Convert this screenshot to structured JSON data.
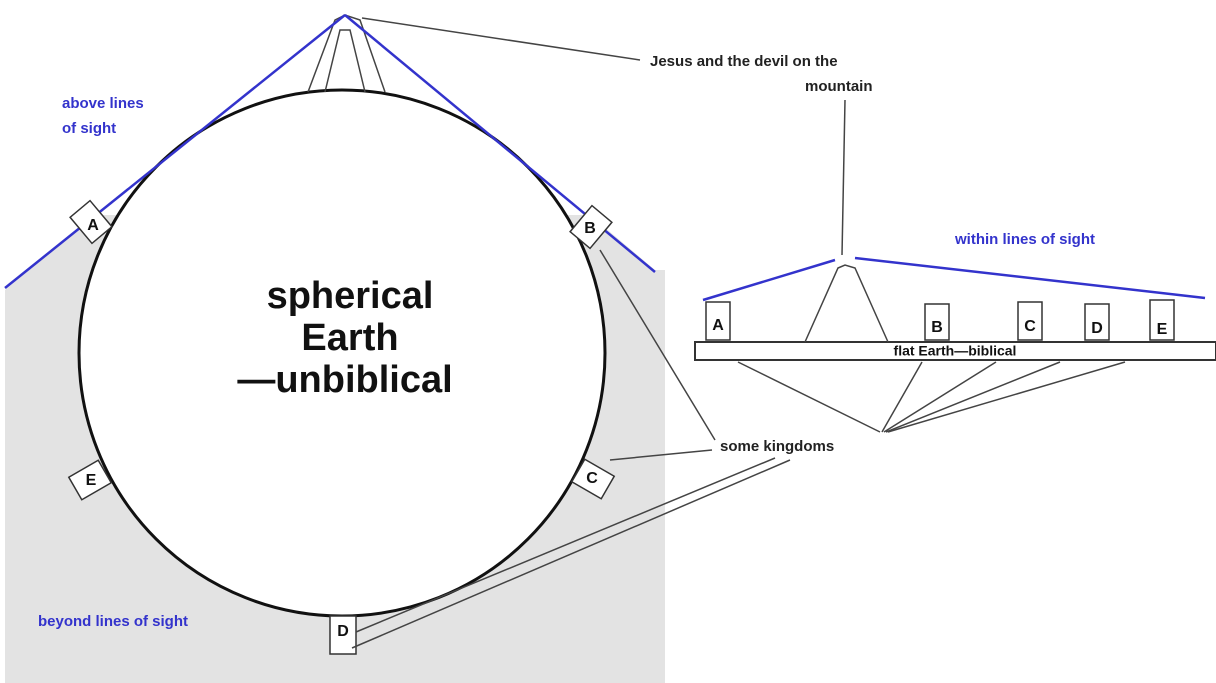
{
  "annotations": {
    "mountain": [
      "Jesus and the devil on the",
      "mountain"
    ],
    "above": [
      "above lines",
      "of sight"
    ],
    "within": "within lines of sight",
    "beyond": "beyond lines of sight",
    "kingdoms": "some kingdoms"
  },
  "sphere": {
    "label": [
      "spherical",
      "Earth",
      "—unbiblical"
    ],
    "kingdoms": [
      "A",
      "B",
      "C",
      "D",
      "E"
    ]
  },
  "flat": {
    "label": "flat Earth—biblical",
    "kingdoms": [
      "A",
      "B",
      "C",
      "D",
      "E"
    ]
  }
}
